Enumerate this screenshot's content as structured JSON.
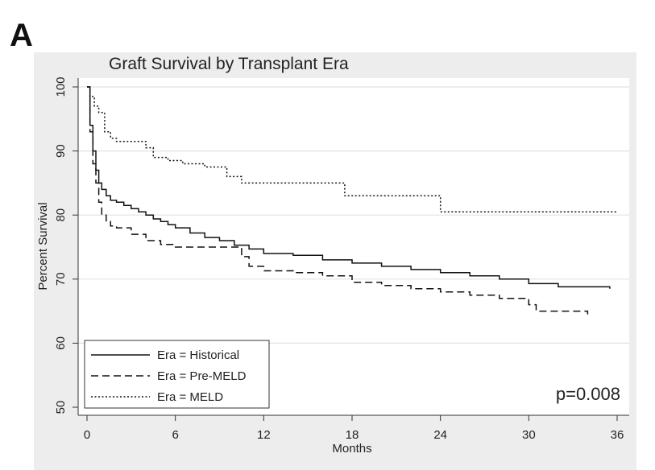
{
  "panel_label": "A",
  "chart_data": {
    "type": "line",
    "title": "Graft Survival by Transplant Era",
    "xlabel": "Months",
    "ylabel": "Percent Survival",
    "xlim": [
      0,
      36
    ],
    "ylim": [
      50,
      100
    ],
    "x_ticks": [
      "0",
      "6",
      "12",
      "18",
      "24",
      "30",
      "36"
    ],
    "y_ticks": [
      "50",
      "60",
      "70",
      "80",
      "90",
      "100"
    ],
    "grid": true,
    "legend_position": "bottom-left",
    "annotation": "p=0.008",
    "series": [
      {
        "name": "Era = Historical",
        "style": "solid",
        "x": [
          0,
          0.2,
          0.4,
          0.6,
          0.8,
          1.0,
          1.3,
          1.6,
          2.0,
          2.5,
          3.0,
          3.5,
          4.0,
          4.5,
          5.0,
          5.5,
          6.0,
          7.0,
          8.0,
          9.0,
          10.0,
          11.0,
          12.0,
          14.0,
          16.0,
          18.0,
          20.0,
          22.0,
          24.0,
          26.0,
          28.0,
          30.0,
          32.0,
          34.0,
          35.5
        ],
        "y": [
          100,
          94,
          90,
          87,
          85,
          84,
          83,
          82.3,
          82,
          81.5,
          81,
          80.5,
          80,
          79.4,
          79,
          78.5,
          78,
          77.2,
          76.5,
          76,
          75.3,
          74.7,
          74,
          73.7,
          73,
          72.5,
          72,
          71.5,
          71,
          70.5,
          70,
          69.3,
          68.8,
          68.8,
          68.5
        ]
      },
      {
        "name": "Era = Pre-MELD",
        "style": "dashed",
        "x": [
          0,
          0.2,
          0.4,
          0.6,
          0.8,
          1.0,
          1.3,
          1.6,
          2.0,
          3.0,
          4.0,
          5.0,
          6.0,
          7.0,
          8.0,
          9.0,
          10.0,
          10.5,
          11.0,
          12.0,
          14.0,
          16.0,
          18.0,
          20.0,
          22.0,
          24.0,
          26.0,
          28.0,
          30.0,
          30.5,
          31.0,
          32.0,
          33.0,
          34.0
        ],
        "y": [
          100,
          93,
          88,
          85,
          82,
          80,
          79,
          78.3,
          78,
          77,
          76,
          75.4,
          75,
          75,
          75,
          75,
          75,
          73.5,
          72,
          71.3,
          71,
          70.5,
          69.5,
          69,
          68.5,
          68,
          67.5,
          67,
          66,
          65,
          65,
          65,
          65,
          64.5
        ]
      },
      {
        "name": "Era = MELD",
        "style": "dotted",
        "x": [
          0,
          0.2,
          0.5,
          0.8,
          1.2,
          1.6,
          2.0,
          3.0,
          4.0,
          4.5,
          5.5,
          6.5,
          8.0,
          9.5,
          10.5,
          12.0,
          14.0,
          16.0,
          17.5,
          20.0,
          22.0,
          24.0,
          26.0,
          28.0,
          30.0,
          32.0,
          34.0,
          36.0
        ],
        "y": [
          100,
          98.5,
          97,
          96,
          93,
          92,
          91.5,
          91.5,
          90.5,
          89,
          88.5,
          88,
          87.5,
          86,
          85,
          85,
          85,
          85,
          83,
          83,
          83,
          80.5,
          80.5,
          80.5,
          80.5,
          80.5,
          80.5,
          80.5
        ]
      }
    ]
  }
}
